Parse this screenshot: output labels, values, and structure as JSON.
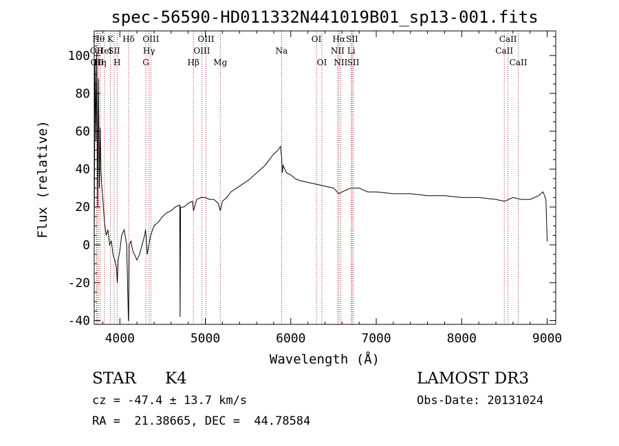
{
  "chart_data": {
    "type": "line",
    "title": "spec-56590-HD011332N441019B01_sp13-001.fits",
    "xlabel": "Wavelength (Å)",
    "ylabel": "Flux (relative)",
    "xlim": [
      3700,
      9100
    ],
    "ylim": [
      -42,
      113
    ],
    "xticks": [
      4000,
      5000,
      6000,
      7000,
      8000,
      9000
    ],
    "yticks": [
      -40,
      -20,
      0,
      20,
      40,
      60,
      80,
      100
    ],
    "grid": false,
    "series": [
      {
        "name": "spectrum",
        "color": "#000000",
        "x": [
          3700,
          3710,
          3720,
          3730,
          3740,
          3750,
          3760,
          3770,
          3780,
          3790,
          3800,
          3820,
          3840,
          3860,
          3880,
          3900,
          3920,
          3940,
          3960,
          3970,
          3980,
          4000,
          4020,
          4050,
          4080,
          4100,
          4102,
          4110,
          4130,
          4150,
          4170,
          4200,
          4230,
          4260,
          4290,
          4300,
          4310,
          4320,
          4340,
          4360,
          4400,
          4450,
          4500,
          4550,
          4600,
          4650,
          4700,
          4705,
          4710,
          4750,
          4800,
          4850,
          4861,
          4900,
          4950,
          5000,
          5050,
          5100,
          5150,
          5175,
          5200,
          5250,
          5300,
          5400,
          5500,
          5600,
          5700,
          5750,
          5800,
          5850,
          5880,
          5893,
          5900,
          5910,
          5930,
          5950,
          6000,
          6050,
          6100,
          6200,
          6300,
          6400,
          6500,
          6563,
          6600,
          6700,
          6800,
          6900,
          7000,
          7200,
          7400,
          7600,
          7800,
          8000,
          8200,
          8400,
          8500,
          8600,
          8700,
          8800,
          8900,
          8950,
          8970,
          8985,
          9000,
          9005
        ],
        "values": [
          -2,
          98,
          55,
          102,
          20,
          88,
          30,
          62,
          38,
          30,
          25,
          12,
          5,
          8,
          0,
          2,
          -5,
          -8,
          -12,
          -20,
          -8,
          -3,
          5,
          8,
          0,
          -40,
          -40,
          0,
          2,
          -3,
          -5,
          -8,
          -5,
          0,
          5,
          8,
          3,
          -5,
          0,
          5,
          10,
          12,
          15,
          17,
          18,
          20,
          21,
          -38,
          20,
          20,
          22,
          23,
          18,
          24,
          25,
          25,
          24,
          24,
          22,
          18,
          23,
          25,
          28,
          31,
          34,
          38,
          42,
          45,
          48,
          50,
          52,
          46,
          38,
          42,
          40,
          38,
          37,
          35,
          34,
          33,
          32,
          31,
          30,
          27,
          28,
          30,
          30,
          28,
          28,
          27,
          27,
          26,
          26,
          25,
          25,
          24,
          23,
          25,
          24,
          24,
          26,
          28,
          26,
          24,
          2,
          2
        ]
      }
    ],
    "lines": [
      {
        "wl": 3727,
        "label": "OII",
        "row": 1
      },
      {
        "wl": 3734,
        "label": "OII",
        "row": 2
      },
      {
        "wl": 3750,
        "label": "Hθ",
        "row": 0
      },
      {
        "wl": 3770,
        "label": "Hη",
        "row": 2
      },
      {
        "wl": 3820,
        "label": "HeI",
        "row": 1
      },
      {
        "wl": 3889,
        "label": "K",
        "row": 0
      },
      {
        "wl": 3933,
        "label": "SII",
        "row": 1
      },
      {
        "wl": 3968,
        "label": "H",
        "row": 2
      },
      {
        "wl": 4102,
        "label": "Hδ",
        "row": 0
      },
      {
        "wl": 4304,
        "label": "G",
        "row": 2
      },
      {
        "wl": 4341,
        "label": "Hγ",
        "row": 1
      },
      {
        "wl": 4363,
        "label": "OIII",
        "row": 0
      },
      {
        "wl": 4861,
        "label": "Hβ",
        "row": 2
      },
      {
        "wl": 4959,
        "label": "OIII",
        "row": 1
      },
      {
        "wl": 5007,
        "label": "OIII",
        "row": 0
      },
      {
        "wl": 5175,
        "label": "Mg",
        "row": 2
      },
      {
        "wl": 5893,
        "label": "Na",
        "row": 1
      },
      {
        "wl": 6300,
        "label": "OI",
        "row": 0
      },
      {
        "wl": 6364,
        "label": "OI",
        "row": 2
      },
      {
        "wl": 6548,
        "label": "NII",
        "row": 1
      },
      {
        "wl": 6563,
        "label": "Hα",
        "row": 0
      },
      {
        "wl": 6584,
        "label": "NII",
        "row": 2
      },
      {
        "wl": 6708,
        "label": "Li",
        "row": 1
      },
      {
        "wl": 6717,
        "label": "SII",
        "row": 0
      },
      {
        "wl": 6731,
        "label": "SII",
        "row": 2
      },
      {
        "wl": 8498,
        "label": "CaII",
        "row": 1
      },
      {
        "wl": 8542,
        "label": "CaII",
        "row": 0
      },
      {
        "wl": 8662,
        "label": "CaII",
        "row": 2
      }
    ]
  },
  "info": {
    "object_class": "STAR",
    "subclass": "K4",
    "survey": "LAMOST DR3",
    "cz": "cz = -47.4 ± 13.7 km/s",
    "obs_date": "Obs-Date: 20131024",
    "coords": "RA =  21.38665, DEC =  44.78584"
  }
}
